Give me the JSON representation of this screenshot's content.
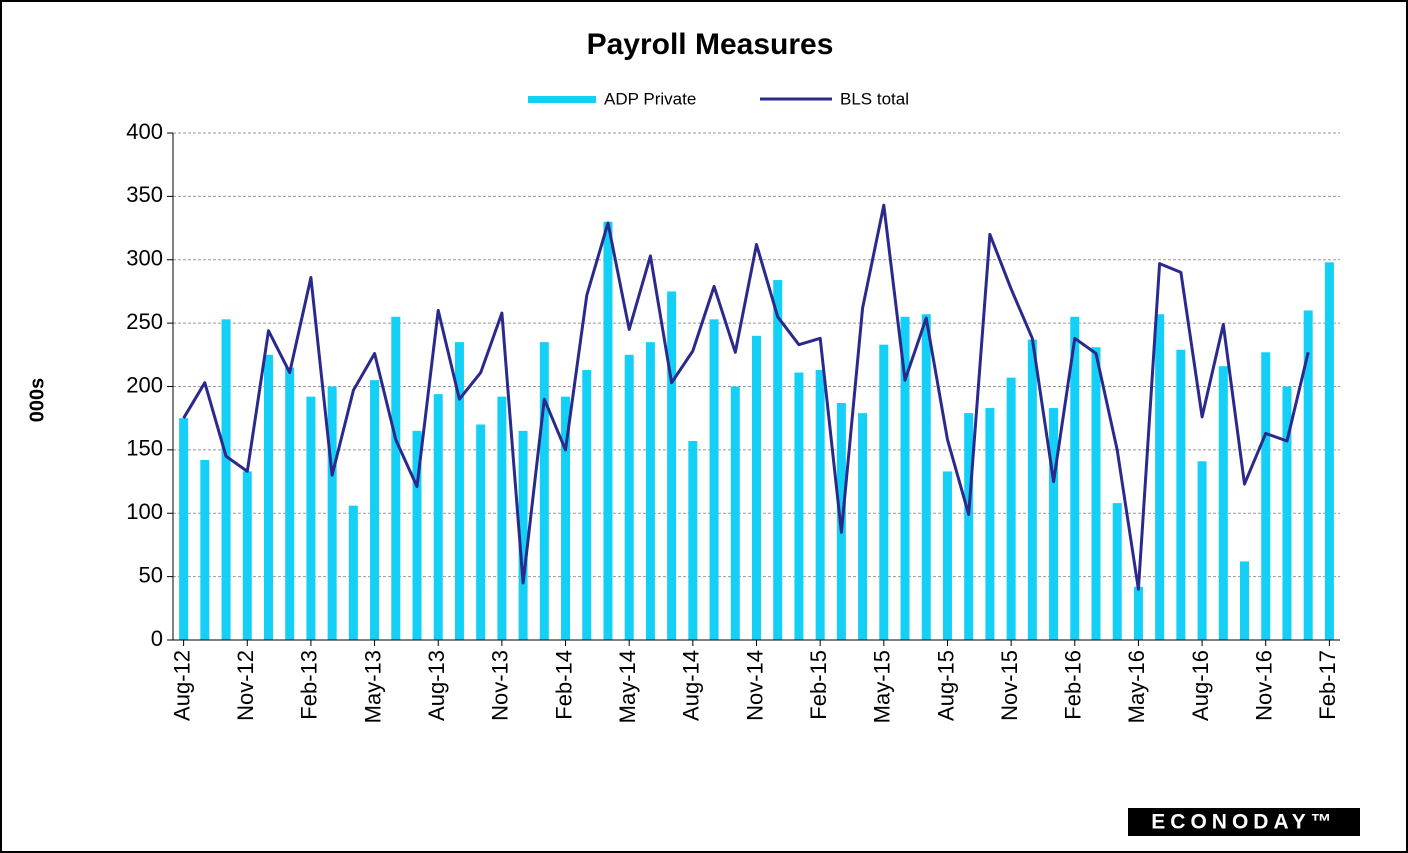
{
  "chart_data": {
    "type": "bar_line",
    "title": "Payroll Measures",
    "y_label": "000s",
    "source": "ECONODAY™",
    "categories": [
      "Aug-12",
      null,
      null,
      "Nov-12",
      null,
      null,
      "Feb-13",
      null,
      null,
      "May-13",
      null,
      null,
      "Aug-13",
      null,
      null,
      "Nov-13",
      null,
      null,
      "Feb-14",
      null,
      null,
      "May-14",
      null,
      null,
      "Aug-14",
      null,
      null,
      "Nov-14",
      null,
      null,
      "Feb-15",
      null,
      null,
      "May-15",
      null,
      null,
      "Aug-15",
      null,
      null,
      "Nov-15",
      null,
      null,
      "Feb-16",
      null,
      null,
      "May-16",
      null,
      null,
      "Aug-16",
      null,
      null,
      "Nov-16",
      null,
      null,
      "Feb-17"
    ],
    "series": [
      {
        "name": "ADP Private",
        "type": "bar",
        "color": "#14d0f7",
        "values": [
          175,
          142,
          253,
          133,
          225,
          215,
          192,
          200,
          106,
          205,
          255,
          165,
          194,
          235,
          170,
          192,
          165,
          235,
          192,
          213,
          330,
          225,
          235,
          275,
          157,
          253,
          200,
          240,
          284,
          211,
          213,
          187,
          179,
          233,
          255,
          257,
          133,
          179,
          183,
          207,
          237,
          183,
          255,
          231,
          108,
          42,
          257,
          229,
          141,
          216,
          62,
          227,
          200,
          260,
          298
        ]
      },
      {
        "name": "BLS total",
        "type": "line",
        "color": "#2b2a8c",
        "values": [
          175,
          203,
          145,
          133,
          244,
          211,
          286,
          130,
          197,
          226,
          158,
          121,
          260,
          190,
          211,
          258,
          45,
          190,
          150,
          272,
          329,
          245,
          303,
          203,
          228,
          279,
          227,
          312,
          255,
          233,
          238,
          85,
          262,
          343,
          205,
          254,
          158,
          99,
          320,
          277,
          238,
          125,
          238,
          226,
          150,
          40,
          297,
          290,
          176,
          249,
          123,
          163,
          157,
          227,
          null
        ]
      }
    ],
    "ylim": [
      0,
      400
    ],
    "yticks": [
      0,
      50,
      100,
      150,
      200,
      250,
      300,
      350,
      400
    ],
    "grid": true,
    "legend": "top"
  }
}
